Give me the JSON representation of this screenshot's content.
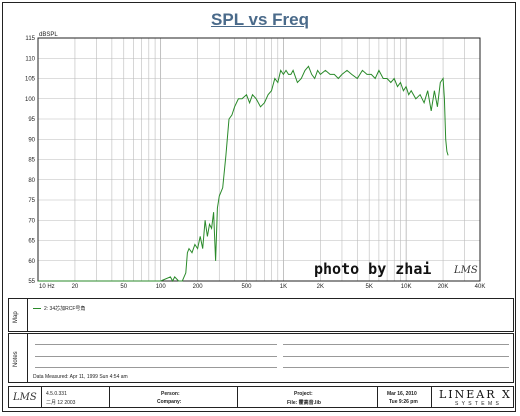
{
  "chart_data": {
    "type": "line",
    "title": "SPL vs Freq",
    "ylabel": "dBSPL",
    "xscale": "log",
    "xlim": [
      10,
      40000
    ],
    "ylim": [
      55,
      115
    ],
    "grid": true,
    "yticks": [
      115,
      110,
      105,
      100,
      95,
      90,
      85,
      80,
      75,
      70,
      65,
      60,
      55
    ],
    "xticks": [
      {
        "v": 10,
        "l": "10  Hz"
      },
      {
        "v": 20,
        "l": "20"
      },
      {
        "v": 50,
        "l": "50"
      },
      {
        "v": 100,
        "l": "100"
      },
      {
        "v": 200,
        "l": "200"
      },
      {
        "v": 500,
        "l": "500"
      },
      {
        "v": 1000,
        "l": "1K"
      },
      {
        "v": 2000,
        "l": "2K"
      },
      {
        "v": 5000,
        "l": "5K"
      },
      {
        "v": 10000,
        "l": "10K"
      },
      {
        "v": 20000,
        "l": "20K"
      },
      {
        "v": 40000,
        "l": "40K"
      }
    ],
    "series": [
      {
        "name": "2: 34芯加RCF号角",
        "color": "#2a8a2a",
        "x": [
          10,
          100,
          120,
          125,
          130,
          140,
          150,
          160,
          165,
          170,
          180,
          190,
          200,
          210,
          220,
          230,
          240,
          250,
          260,
          270,
          280,
          290,
          300,
          320,
          340,
          360,
          380,
          400,
          430,
          460,
          500,
          530,
          560,
          600,
          650,
          700,
          750,
          800,
          850,
          900,
          950,
          1000,
          1050,
          1100,
          1150,
          1200,
          1300,
          1400,
          1500,
          1600,
          1700,
          1800,
          1900,
          2000,
          2200,
          2400,
          2600,
          2800,
          3000,
          3300,
          3600,
          4000,
          4400,
          4800,
          5200,
          5600,
          6000,
          6500,
          7000,
          7500,
          8000,
          8500,
          9000,
          9500,
          10000,
          10500,
          11000,
          12000,
          13000,
          14000,
          15000,
          16000,
          17000,
          18000,
          19000,
          20000,
          20500,
          21000,
          21500,
          22000
        ],
        "y": [
          55,
          55,
          56,
          55,
          56,
          55,
          55,
          57,
          62,
          63,
          62,
          64,
          63,
          66,
          63,
          70,
          66,
          69,
          68,
          72,
          60,
          73,
          76,
          78,
          86,
          95,
          96,
          98,
          100,
          100,
          101,
          99,
          101,
          100,
          98,
          99,
          101,
          102,
          105,
          104,
          107,
          106,
          107,
          106,
          106,
          107,
          104,
          105,
          107,
          108,
          106,
          105,
          107,
          106,
          107,
          106,
          106,
          105,
          106,
          107,
          106,
          105,
          107,
          106,
          106,
          105,
          107,
          105,
          105,
          104,
          105,
          103,
          104,
          102,
          103,
          101,
          102,
          100,
          101,
          99,
          102,
          97,
          102,
          98,
          104,
          105,
          100,
          90,
          87,
          86
        ]
      }
    ]
  },
  "watermark": "photo by zhai",
  "logo_small": "LMS",
  "map": {
    "label": "Map",
    "legend": "2: 34芯加RCF号角"
  },
  "notes": {
    "label": "Notes",
    "data_measured": "Data Measured: Apr 11, 1999  Sun  4:54 am"
  },
  "footer": {
    "logo_small": "LMS",
    "version": "4.5.0.331",
    "version_date": "二月 12 2003",
    "person_label": "Person:",
    "company_label": "Company:",
    "project_label": "Project:",
    "file_label": "File: 霍高音.lib",
    "date": "Mar 16, 2010",
    "time": "Tue  9:26 pm",
    "brand": "LINEAR X",
    "brand_sub": "S Y S T E M S"
  }
}
